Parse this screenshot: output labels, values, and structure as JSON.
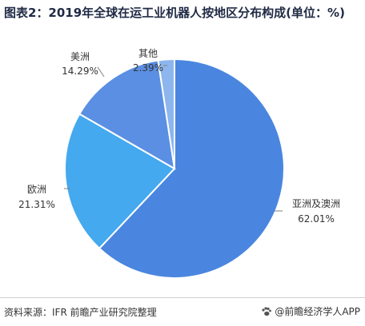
{
  "title": "图表2：2019年全球在运工业机器人按地区分布构成(单位：%)",
  "colors": {
    "asia": "#4a86df",
    "europe": "#44a9ee",
    "america": "#5a8fe3",
    "other": "#8db6ee",
    "stroke": "#ffffff",
    "leader": "#7f7f7f"
  },
  "chart_data": {
    "type": "pie",
    "title": "图表2：2019年全球在运工业机器人按地区分布构成(单位：%)",
    "unit": "%",
    "slices": [
      {
        "name": "亚洲及澳洲",
        "value": 62.01,
        "label": "62.01%"
      },
      {
        "name": "欧洲",
        "value": 21.31,
        "label": "21.31%"
      },
      {
        "name": "美洲",
        "value": 14.29,
        "label": "14.29%"
      },
      {
        "name": "其他",
        "value": 2.39,
        "label": "2.39%"
      }
    ]
  },
  "footer": {
    "source": "资料来源：IFR 前瞻产业研究院整理",
    "brand": "@前瞻经济学人APP",
    "brand_icon": "paw-icon"
  }
}
